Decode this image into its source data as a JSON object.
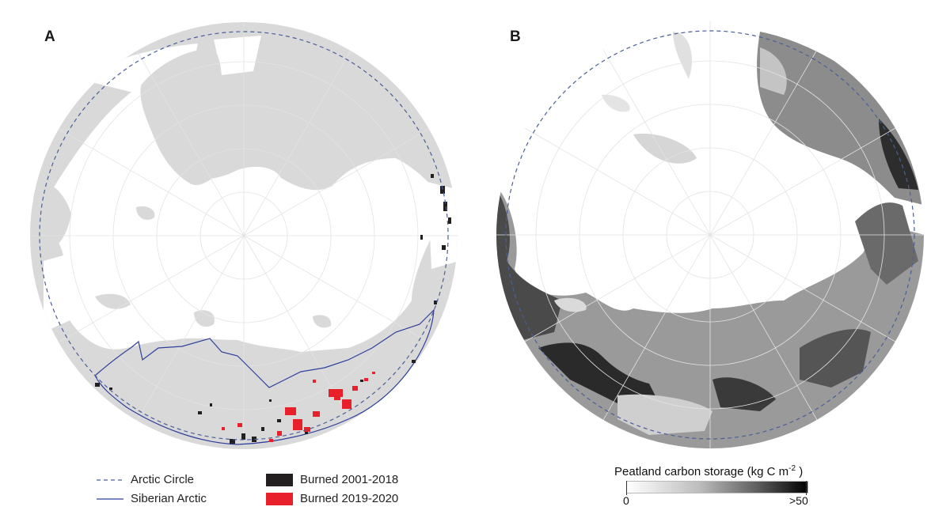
{
  "panels": {
    "a": {
      "label": "A"
    },
    "b": {
      "label": "B"
    }
  },
  "legend": {
    "arctic_circle": "Arctic Circle",
    "siberian_arctic": "Siberian Arctic",
    "burned_early": "Burned 2001-2018",
    "burned_recent": "Burned 2019-2020"
  },
  "colorbar": {
    "title_main": "Peatland carbon storage (kg C m",
    "title_exp": "-2",
    "title_close": " )",
    "min_label": "0",
    "max_label": ">50"
  },
  "colors": {
    "land": "#d9d9d9",
    "ocean": "#ffffff",
    "arctic_circle_line": "#4a5f99",
    "siberian_line": "#2e3f9a",
    "burned_early": "#231f20",
    "burned_recent": "#e8202a"
  }
}
